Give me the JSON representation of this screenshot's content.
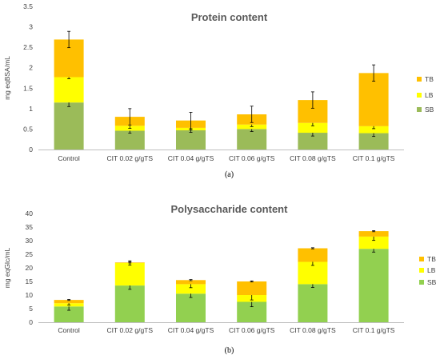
{
  "chart_data": [
    {
      "type": "bar",
      "stacked": true,
      "panel_label": "(a)",
      "title": "Protein content",
      "ylabel": "mg eqBSA/mL",
      "xlabel": "",
      "ylim": [
        0,
        3.5
      ],
      "yticks": [
        "0",
        "0.5",
        "1",
        "1.5",
        "2",
        "2.5",
        "3",
        "3.5"
      ],
      "grid": false,
      "legend": "right",
      "categories": [
        "Control",
        "CIT 0.02  g/gTS",
        "CIT 0.04  g/gTS",
        "CIT 0.06  g/gTS",
        "CIT 0.08  g/gTS",
        "CIT 0.1  g/gTS"
      ],
      "series": [
        {
          "name": "SB",
          "color": "#9bbb59",
          "values": [
            1.15,
            0.46,
            0.47,
            0.5,
            0.41,
            0.4
          ]
        },
        {
          "name": "LB",
          "color": "#ffff00",
          "values": [
            0.62,
            0.12,
            0.06,
            0.11,
            0.24,
            0.17
          ]
        },
        {
          "name": "TB",
          "color": "#ffc000",
          "values": [
            0.92,
            0.22,
            0.18,
            0.25,
            0.56,
            1.3
          ]
        }
      ],
      "errors": [
        [
          0.1,
          0.06,
          0.05,
          0.06,
          0.08,
          0.08
        ],
        [
          0.04,
          0.06,
          0.05,
          0.05,
          0.07,
          0.06
        ],
        [
          0.2,
          0.2,
          0.2,
          0.2,
          0.2,
          0.2
        ]
      ]
    },
    {
      "type": "bar",
      "stacked": true,
      "panel_label": "(b)",
      "title": "Polysaccharide content",
      "ylabel": "mg eqGlc/mL",
      "xlabel": "",
      "ylim": [
        0,
        40
      ],
      "yticks": [
        "0",
        "5",
        "10",
        "15",
        "20",
        "25",
        "30",
        "35",
        "40"
      ],
      "grid": false,
      "legend": "right",
      "categories": [
        "Control",
        "CIT 0.02  g/gTS",
        "CIT 0.04  g/gTS",
        "CIT 0.06  g/gTS",
        "CIT 0.08  g/gTS",
        "CIT 0.1  g/gTS"
      ],
      "series": [
        {
          "name": "SB",
          "color": "#92d050",
          "values": [
            5.8,
            13.5,
            10.5,
            7.5,
            14,
            27
          ]
        },
        {
          "name": "LB",
          "color": "#ffff00",
          "values": [
            1.2,
            8.3,
            3.5,
            2.5,
            8.2,
            4.5
          ]
        },
        {
          "name": "TB",
          "color": "#ffc000",
          "values": [
            1.2,
            0.2,
            1.5,
            5,
            5,
            2
          ]
        }
      ],
      "errors": [
        [
          1.4,
          1.4,
          1.4,
          1.8,
          1.2,
          1.2
        ],
        [
          0.7,
          0.8,
          1.3,
          1.8,
          1.3,
          1.4
        ],
        [
          0.2,
          0.2,
          0.2,
          0.2,
          0.2,
          0.2
        ]
      ]
    }
  ]
}
